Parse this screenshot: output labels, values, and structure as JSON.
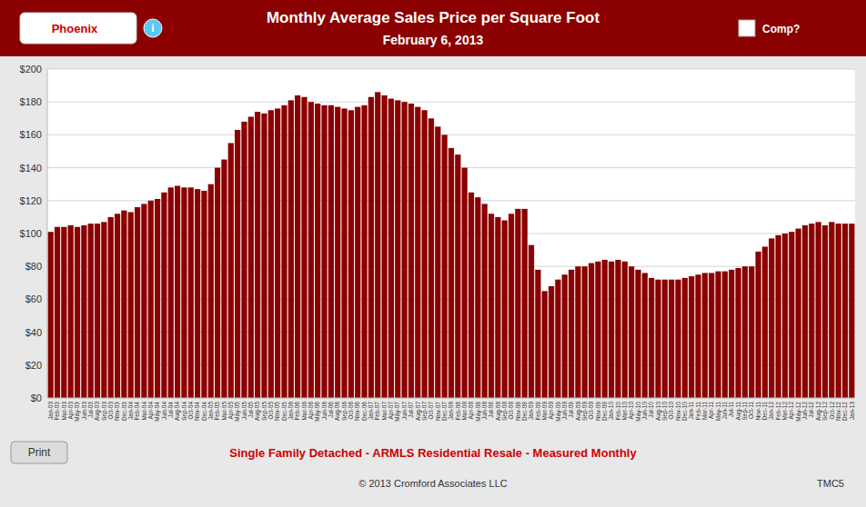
{
  "chart_data": {
    "type": "bar",
    "title": "Monthly Average Sales Price per Square Foot",
    "subtitle": "February 6, 2013",
    "annotations": [
      "Phoenix",
      "i",
      "Comp?",
      "Print",
      "Single Family Detached - ARMLS Residential Resale - Measured Monthly",
      "© 2013 Cromford Associates LLC",
      "TMC5"
    ],
    "categories": [
      "Jan-03",
      "Feb-03",
      "Mar-03",
      "Apr-03",
      "May-03",
      "Jun-03",
      "Jul-03",
      "Aug-03",
      "Sep-03",
      "Oct-03",
      "Nov-03",
      "Dec-03",
      "Jan-04",
      "Feb-04",
      "Mar-04",
      "Apr-04",
      "May-04",
      "Jun-04",
      "Jul-04",
      "Aug-04",
      "Sep-04",
      "Oct-04",
      "Nov-04",
      "Dec-04",
      "Jan-05",
      "Feb-05",
      "Mar-05",
      "Apr-05",
      "May-05",
      "Jun-05",
      "Jul-05",
      "Aug-05",
      "Sep-05",
      "Oct-05",
      "Nov-05",
      "Dec-05",
      "Jan-06",
      "Feb-06",
      "Mar-06",
      "Apr-06",
      "May-06",
      "Jun-06",
      "Jul-06",
      "Aug-06",
      "Sep-06",
      "Oct-06",
      "Nov-06",
      "Dec-06",
      "Jan-07",
      "Feb-07",
      "Mar-07",
      "Apr-07",
      "May-07",
      "Jun-07",
      "Jul-07",
      "Aug-07",
      "Sep-07",
      "Oct-07",
      "Nov-07",
      "Dec-07",
      "Jan-08",
      "Feb-08",
      "Mar-08",
      "Apr-08",
      "May-08",
      "Jun-08",
      "Jul-08",
      "Aug-08",
      "Sep-08",
      "Oct-08",
      "Nov-08",
      "Dec-08",
      "Jan-09",
      "Feb-09",
      "Mar-09",
      "Apr-09",
      "May-09",
      "Jun-09",
      "Jul-09",
      "Aug-09",
      "Sep-09",
      "Oct-09",
      "Nov-09",
      "Dec-09",
      "Jan-10",
      "Feb-10",
      "Mar-10",
      "Apr-10",
      "May-10",
      "Jun-10",
      "Jul-10",
      "Aug-10",
      "Sep-10",
      "Oct-10",
      "Nov-10",
      "Dec-10",
      "Jan-11",
      "Feb-11",
      "Mar-11",
      "Apr-11",
      "May-11",
      "Jun-11",
      "Jul-11",
      "Aug-11",
      "Sep-11",
      "Oct-11",
      "Nov-11",
      "Dec-11",
      "Jan-12",
      "Feb-12",
      "Mar-12",
      "Apr-12",
      "May-12",
      "Jun-12",
      "Jul-12",
      "Aug-12",
      "Sep-12",
      "Oct-12",
      "Nov-12",
      "Dec-12",
      "Jan-13"
    ],
    "values": [
      101,
      104,
      104,
      105,
      104,
      105,
      106,
      106,
      107,
      110,
      112,
      114,
      113,
      116,
      118,
      120,
      121,
      125,
      128,
      129,
      128,
      128,
      127,
      126,
      130,
      140,
      145,
      155,
      163,
      168,
      171,
      174,
      173,
      175,
      176,
      178,
      181,
      184,
      183,
      180,
      179,
      178,
      178,
      177,
      176,
      175,
      177,
      178,
      183,
      186,
      184,
      182,
      181,
      180,
      179,
      177,
      175,
      170,
      165,
      160,
      152,
      148,
      140,
      125,
      122,
      118,
      112,
      110,
      108,
      112,
      115,
      115,
      93,
      78,
      65,
      68,
      72,
      75,
      78,
      80,
      80,
      82,
      83,
      84,
      83,
      84,
      83,
      80,
      78,
      76,
      73,
      72,
      72,
      72,
      72,
      73,
      74,
      75,
      76,
      76,
      77,
      77,
      78,
      79,
      80,
      80,
      89,
      92,
      97,
      99,
      100,
      101,
      103,
      105,
      106,
      107,
      105,
      107,
      106,
      106,
      106
    ],
    "color": "#8B0000",
    "ylim": [
      0,
      200
    ],
    "yticks": [
      {
        "value": 0,
        "label": "$0"
      },
      {
        "value": 20,
        "label": "$20"
      },
      {
        "value": 40,
        "label": "$40"
      },
      {
        "value": 60,
        "label": "$60"
      },
      {
        "value": 80,
        "label": "$80"
      },
      {
        "value": 100,
        "label": "$100"
      },
      {
        "value": 120,
        "label": "$120"
      },
      {
        "value": 140,
        "label": "$140"
      },
      {
        "value": 160,
        "label": "$160"
      },
      {
        "value": 180,
        "label": "$180"
      },
      {
        "value": 200,
        "label": "$200"
      }
    ],
    "grid": true
  }
}
